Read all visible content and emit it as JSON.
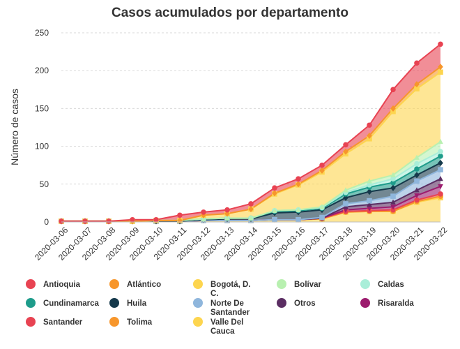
{
  "chart_data": {
    "type": "area",
    "stacked": true,
    "title": "Casos acumulados por departamento",
    "xlabel": "",
    "ylabel": "Número de casos",
    "ylim": [
      0,
      250
    ],
    "yticks": [
      0,
      50,
      100,
      150,
      200,
      250
    ],
    "grid": true,
    "legend_position": "bottom",
    "x": [
      "2020-03-06",
      "2020-03-07",
      "2020-03-08",
      "2020-03-09",
      "2020-03-10",
      "2020-03-11",
      "2020-03-12",
      "2020-03-13",
      "2020-03-14",
      "2020-03-15",
      "2020-03-16",
      "2020-03-17",
      "2020-03-18",
      "2020-03-19",
      "2020-03-20",
      "2020-03-21",
      "2020-03-22"
    ],
    "stack_order": [
      "Valle Del Cauca",
      "Tolima",
      "Santander",
      "Risaralda",
      "Otros",
      "Norte De Santander",
      "Huila",
      "Cundinamarca",
      "Caldas",
      "Bolívar",
      "Bogotá, D. C.",
      "Atlántico",
      "Antioquia"
    ],
    "cumulative_totals": [
      {
        "name": "Valle Del Cauca",
        "marker": "square",
        "values": [
          1,
          1,
          1,
          1,
          1,
          1,
          2,
          2,
          2,
          3,
          3,
          4,
          13,
          14,
          14,
          26,
          32
        ]
      },
      {
        "name": "Tolima",
        "marker": "circle",
        "values": [
          1,
          1,
          1,
          1,
          1,
          1,
          2,
          2,
          2,
          3,
          3,
          4,
          13,
          14,
          14,
          27,
          34
        ]
      },
      {
        "name": "Santander",
        "marker": "circle",
        "values": [
          1,
          1,
          1,
          1,
          1,
          1,
          2,
          2,
          2,
          3,
          3,
          5,
          14,
          15,
          16,
          29,
          37
        ]
      },
      {
        "name": "Risaralda",
        "marker": "triangle-down",
        "values": [
          1,
          1,
          1,
          1,
          1,
          1,
          2,
          2,
          2,
          3,
          3,
          5,
          16,
          18,
          20,
          35,
          47
        ]
      },
      {
        "name": "Otros",
        "marker": "triangle-up",
        "values": [
          1,
          1,
          1,
          1,
          1,
          1,
          2,
          2,
          2,
          3,
          3,
          5,
          20,
          23,
          26,
          42,
          57
        ]
      },
      {
        "name": "Norte De Santander",
        "marker": "square",
        "values": [
          1,
          1,
          1,
          1,
          1,
          1,
          2,
          2,
          2,
          3,
          3,
          6,
          24,
          28,
          34,
          54,
          69
        ]
      },
      {
        "name": "Huila",
        "marker": "diamond",
        "values": [
          1,
          1,
          1,
          1,
          1,
          1,
          3,
          4,
          4,
          12,
          13,
          16,
          32,
          40,
          45,
          62,
          78
        ]
      },
      {
        "name": "Cundinamarca",
        "marker": "circle",
        "values": [
          1,
          1,
          1,
          1,
          2,
          2,
          4,
          5,
          5,
          14,
          15,
          18,
          37,
          46,
          52,
          70,
          87
        ]
      },
      {
        "name": "Caldas",
        "marker": "circle",
        "values": [
          1,
          1,
          1,
          1,
          2,
          2,
          4,
          5,
          5,
          15,
          16,
          19,
          39,
          49,
          57,
          77,
          93
        ]
      },
      {
        "name": "Bolívar",
        "marker": "triangle-up",
        "values": [
          1,
          1,
          1,
          1,
          2,
          2,
          4,
          5,
          5,
          15,
          16,
          20,
          42,
          54,
          62,
          85,
          106
        ]
      },
      {
        "name": "Bogotá, D. C.",
        "marker": "square",
        "values": [
          1,
          1,
          1,
          1,
          2,
          2,
          9,
          11,
          17,
          37,
          49,
          66,
          90,
          110,
          146,
          176,
          198
        ]
      },
      {
        "name": "Atlántico",
        "marker": "diamond",
        "values": [
          1,
          1,
          1,
          1,
          2,
          2,
          9,
          11,
          17,
          38,
          50,
          68,
          93,
          114,
          150,
          182,
          205
        ]
      },
      {
        "name": "Antioquia",
        "marker": "circle",
        "values": [
          1,
          1,
          1,
          3,
          3,
          9,
          13,
          16,
          24,
          45,
          57,
          75,
          102,
          128,
          175,
          210,
          235
        ]
      }
    ],
    "colors": {
      "Antioquia": "#e84352",
      "Atlántico": "#f7962b",
      "Bogotá, D. C.": "#fdd54f",
      "Bolívar": "#b8f0b0",
      "Caldas": "#a9eed9",
      "Cundinamarca": "#1e9c8b",
      "Huila": "#15394b",
      "Norte De Santander": "#8fb6dc",
      "Otros": "#5b2e63",
      "Risaralda": "#9c1c6e",
      "Santander": "#e84352",
      "Tolima": "#f7962b",
      "Valle Del Cauca": "#fdd54f"
    },
    "legend": [
      {
        "name": "Antioquia",
        "label_lines": [
          "Antioquia"
        ]
      },
      {
        "name": "Atlántico",
        "label_lines": [
          "Atlántico"
        ]
      },
      {
        "name": "Bogotá, D. C.",
        "label_lines": [
          "Bogotá, D.",
          "C."
        ]
      },
      {
        "name": "Bolívar",
        "label_lines": [
          "Bolívar"
        ]
      },
      {
        "name": "Caldas",
        "label_lines": [
          "Caldas"
        ]
      },
      {
        "name": "Cundinamarca",
        "label_lines": [
          "Cundinamarca"
        ]
      },
      {
        "name": "Huila",
        "label_lines": [
          "Huila"
        ]
      },
      {
        "name": "Norte De Santander",
        "label_lines": [
          "Norte De",
          "Santander"
        ]
      },
      {
        "name": "Otros",
        "label_lines": [
          "Otros"
        ]
      },
      {
        "name": "Risaralda",
        "label_lines": [
          "Risaralda"
        ]
      },
      {
        "name": "Santander",
        "label_lines": [
          "Santander"
        ]
      },
      {
        "name": "Tolima",
        "label_lines": [
          "Tolima"
        ]
      },
      {
        "name": "Valle Del Cauca",
        "label_lines": [
          "Valle Del",
          "Cauca"
        ]
      }
    ]
  }
}
